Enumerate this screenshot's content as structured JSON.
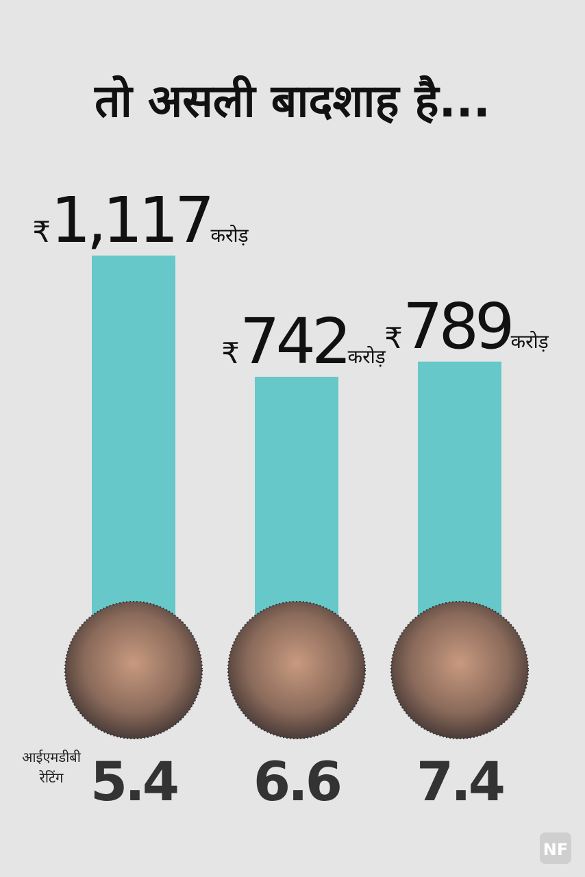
{
  "chart_data": {
    "type": "bar",
    "title": "तो असली बादशाह है...",
    "values": [
      1117,
      742,
      789
    ],
    "value_labels": [
      "1,117",
      "742",
      "789"
    ],
    "currency_symbol": "₹",
    "unit": "करोड़",
    "color": "#66c8c8",
    "rating_label": [
      "आईएमडीबी",
      "रेटिंग"
    ],
    "ratings": [
      5.4,
      6.6,
      7.4
    ],
    "logo": "NF"
  }
}
